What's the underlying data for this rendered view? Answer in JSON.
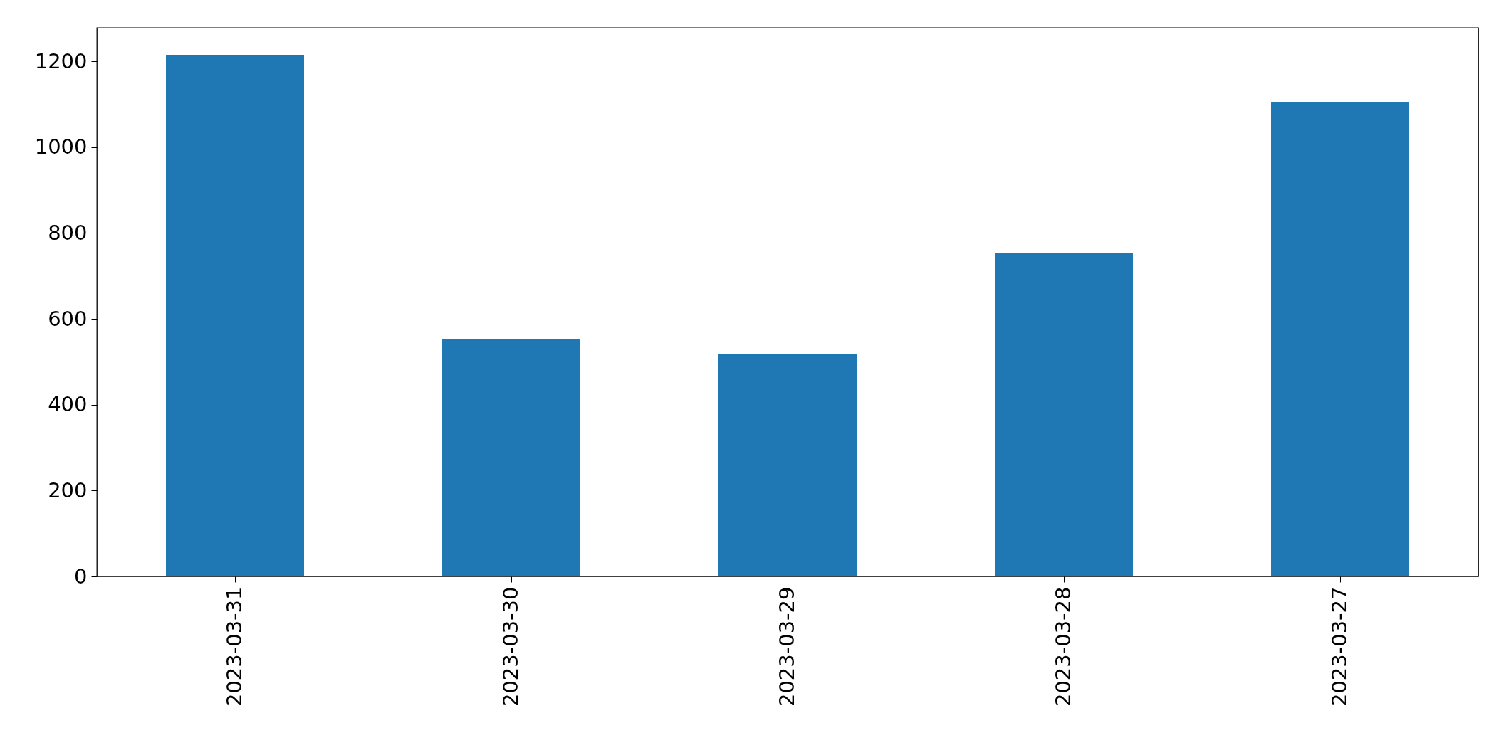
{
  "chart_data": {
    "type": "bar",
    "categories": [
      "2023-03-31",
      "2023-03-30",
      "2023-03-29",
      "2023-03-28",
      "2023-03-27"
    ],
    "values": [
      1215,
      553,
      519,
      754,
      1105
    ],
    "color": "#1f77b4",
    "ylim": [
      0,
      1278
    ],
    "yticks": [
      0,
      200,
      400,
      600,
      800,
      1000,
      1200
    ],
    "grid": false
  }
}
